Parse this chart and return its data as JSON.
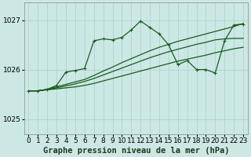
{
  "xlabel": "Graphe pression niveau de la mer (hPa)",
  "bg_color": "#cce8e5",
  "line_color": "#1a5c1a",
  "grid_color": "#aacece",
  "ylim": [
    1024.7,
    1027.35
  ],
  "xlim": [
    -0.5,
    23.5
  ],
  "yticks": [
    1025,
    1026,
    1027
  ],
  "xticks": [
    0,
    1,
    2,
    3,
    4,
    5,
    6,
    7,
    8,
    9,
    10,
    11,
    12,
    13,
    14,
    15,
    16,
    17,
    18,
    19,
    20,
    21,
    22,
    23
  ],
  "s_main": [
    1025.57,
    1025.57,
    1025.6,
    1025.68,
    1025.95,
    1025.98,
    1026.02,
    1026.58,
    1026.62,
    1026.6,
    1026.65,
    1026.8,
    1026.98,
    1026.85,
    1026.72,
    1026.5,
    1026.1,
    1026.18,
    1026.0,
    1026.0,
    1025.93,
    1026.58,
    1026.9,
    1026.92
  ],
  "s_a": [
    1025.57,
    1025.57,
    1025.6,
    1025.65,
    1025.7,
    1025.75,
    1025.8,
    1025.88,
    1025.97,
    1026.05,
    1026.14,
    1026.22,
    1026.3,
    1026.38,
    1026.45,
    1026.51,
    1026.57,
    1026.62,
    1026.67,
    1026.72,
    1026.77,
    1026.82,
    1026.87,
    1026.93
  ],
  "s_b": [
    1025.57,
    1025.57,
    1025.6,
    1025.63,
    1025.67,
    1025.71,
    1025.76,
    1025.82,
    1025.89,
    1025.96,
    1026.03,
    1026.1,
    1026.17,
    1026.24,
    1026.3,
    1026.36,
    1026.41,
    1026.46,
    1026.51,
    1026.55,
    1026.6,
    1026.62,
    1026.63,
    1026.63
  ],
  "s_c": [
    1025.57,
    1025.57,
    1025.59,
    1025.61,
    1025.63,
    1025.65,
    1025.68,
    1025.72,
    1025.77,
    1025.82,
    1025.87,
    1025.92,
    1025.97,
    1026.02,
    1026.07,
    1026.12,
    1026.17,
    1026.21,
    1026.25,
    1026.29,
    1026.34,
    1026.38,
    1026.42,
    1026.45
  ],
  "xlabel_fontsize": 7.5,
  "tick_fontsize": 6.5
}
